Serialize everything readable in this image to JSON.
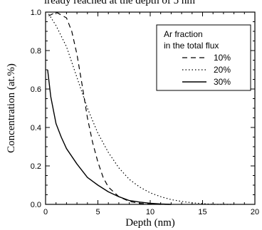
{
  "caption_top": "lready reached at the depth of 5 nm",
  "chart_data": {
    "type": "line",
    "xlabel": "Depth (nm)",
    "ylabel": "Concentration (at.%)",
    "xlim": [
      0,
      20
    ],
    "ylim": [
      0,
      1.0
    ],
    "x_ticks": [
      "0",
      "5",
      "10",
      "15",
      "20"
    ],
    "y_ticks": [
      "0.0",
      "0.2",
      "0.4",
      "0.6",
      "0.8",
      "1.0"
    ],
    "grid": false,
    "legend": {
      "placement": "top-right",
      "title_lines": [
        "Ar fraction",
        "in the total flux"
      ],
      "entries": [
        "10%",
        "20%",
        "30%"
      ]
    },
    "series": [
      {
        "name": "10%",
        "style": "dashed",
        "x": [
          0.3,
          1.0,
          2.0,
          2.5,
          3.0,
          3.5,
          4.0,
          4.5,
          5.0,
          5.5,
          6.0,
          7.0,
          8.0,
          9.0,
          10.0,
          11.0,
          12.0
        ],
        "y": [
          0.98,
          1.0,
          0.97,
          0.9,
          0.78,
          0.62,
          0.45,
          0.32,
          0.22,
          0.14,
          0.09,
          0.04,
          0.015,
          0.005,
          0.002,
          0.0,
          0.0
        ]
      },
      {
        "name": "20%",
        "style": "dotted",
        "x": [
          0.3,
          1.0,
          2.0,
          3.0,
          4.0,
          5.0,
          6.0,
          7.0,
          8.0,
          9.0,
          10.0,
          11.0,
          12.0,
          13.0,
          14.0,
          15.0,
          16.0,
          18.0
        ],
        "y": [
          0.99,
          0.93,
          0.82,
          0.66,
          0.5,
          0.37,
          0.27,
          0.19,
          0.13,
          0.09,
          0.06,
          0.04,
          0.025,
          0.015,
          0.008,
          0.004,
          0.0,
          0.0
        ]
      },
      {
        "name": "30%",
        "style": "solid",
        "x": [
          0.2,
          0.5,
          1.0,
          1.5,
          2.0,
          3.0,
          4.0,
          5.0,
          6.0,
          7.0,
          8.0,
          9.0,
          10.0,
          11.0,
          12.0
        ],
        "y": [
          0.7,
          0.56,
          0.42,
          0.35,
          0.29,
          0.21,
          0.14,
          0.1,
          0.065,
          0.04,
          0.02,
          0.012,
          0.006,
          0.002,
          0.0
        ]
      }
    ]
  }
}
